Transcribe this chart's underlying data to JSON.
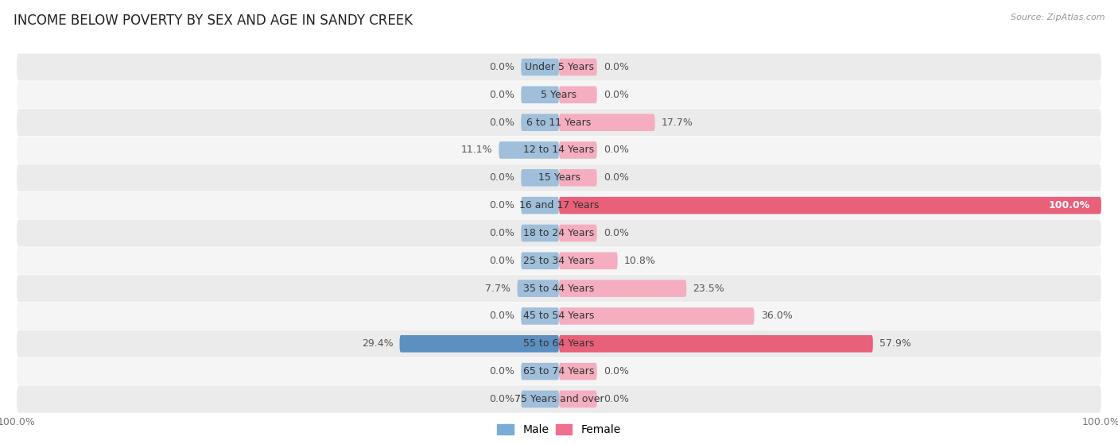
{
  "title": "INCOME BELOW POVERTY BY SEX AND AGE IN SANDY CREEK",
  "source": "Source: ZipAtlas.com",
  "categories": [
    "Under 5 Years",
    "5 Years",
    "6 to 11 Years",
    "12 to 14 Years",
    "15 Years",
    "16 and 17 Years",
    "18 to 24 Years",
    "25 to 34 Years",
    "35 to 44 Years",
    "45 to 54 Years",
    "55 to 64 Years",
    "65 to 74 Years",
    "75 Years and over"
  ],
  "male_values": [
    0.0,
    0.0,
    0.0,
    11.1,
    0.0,
    0.0,
    0.0,
    0.0,
    7.7,
    0.0,
    29.4,
    0.0,
    0.0
  ],
  "female_values": [
    0.0,
    0.0,
    17.7,
    0.0,
    0.0,
    100.0,
    0.0,
    10.8,
    23.5,
    36.0,
    57.9,
    0.0,
    0.0
  ],
  "male_color": "#9fbfda",
  "female_color": "#f5aec0",
  "male_strong_color": "#5b90c0",
  "female_strong_color": "#e8607a",
  "row_colors": [
    "#ebebeb",
    "#f5f5f5"
  ],
  "title_fontsize": 12,
  "label_fontsize": 9,
  "value_fontsize": 9,
  "tick_fontsize": 9,
  "max_value": 100.0,
  "stub_size": 7.0,
  "legend_male_color": "#7badd4",
  "legend_female_color": "#f07090"
}
